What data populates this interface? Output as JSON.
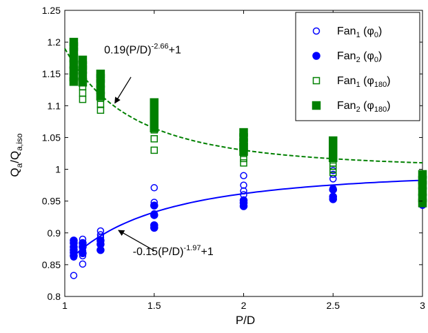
{
  "chart_data": {
    "type": "scatter",
    "xlabel": "P/D",
    "ylabel": {
      "main": "Q",
      "sub1": "a",
      "mid": "/Q",
      "sub2": "a,iso"
    },
    "xlim": [
      1,
      3
    ],
    "ylim": [
      0.8,
      1.25
    ],
    "xticks": [
      {
        "v": 1,
        "label": "1"
      },
      {
        "v": 1.5,
        "label": "1.5"
      },
      {
        "v": 2,
        "label": "2"
      },
      {
        "v": 2.5,
        "label": "2.5"
      },
      {
        "v": 3,
        "label": "3"
      }
    ],
    "yticks": [
      {
        "v": 0.8,
        "label": "0.8"
      },
      {
        "v": 0.85,
        "label": "0.85"
      },
      {
        "v": 0.9,
        "label": "0.9"
      },
      {
        "v": 0.95,
        "label": "0.95"
      },
      {
        "v": 1.0,
        "label": "1"
      },
      {
        "v": 1.05,
        "label": "1.05"
      },
      {
        "v": 1.1,
        "label": "1.1"
      },
      {
        "v": 1.15,
        "label": "1.15"
      },
      {
        "v": 1.2,
        "label": "1.2"
      },
      {
        "v": 1.25,
        "label": "1.25"
      }
    ],
    "grid": false,
    "legend_position": "top-right",
    "colors": {
      "blue": "#0000ff",
      "green": "#008000",
      "blue_line": "#1a1aff"
    },
    "series": [
      {
        "name": "Fan1 (φ0)",
        "legend": {
          "base": "Fan",
          "sub": "1",
          "mid": " (φ",
          "phisub": "0",
          "end": ")"
        },
        "marker": "circle-open",
        "color": "#0000ff",
        "points": [
          [
            1.05,
            0.833
          ],
          [
            1.05,
            0.862
          ],
          [
            1.05,
            0.868
          ],
          [
            1.05,
            0.875
          ],
          [
            1.05,
            0.882
          ],
          [
            1.05,
            0.887
          ],
          [
            1.1,
            0.851
          ],
          [
            1.1,
            0.864
          ],
          [
            1.1,
            0.872
          ],
          [
            1.1,
            0.881
          ],
          [
            1.1,
            0.89
          ],
          [
            1.2,
            0.885
          ],
          [
            1.2,
            0.893
          ],
          [
            1.2,
            0.897
          ],
          [
            1.2,
            0.903
          ],
          [
            1.5,
            0.912
          ],
          [
            1.5,
            0.93
          ],
          [
            1.5,
            0.943
          ],
          [
            1.5,
            0.948
          ],
          [
            1.5,
            0.971
          ],
          [
            2.0,
            0.946
          ],
          [
            2.0,
            0.952
          ],
          [
            2.0,
            0.96
          ],
          [
            2.0,
            0.966
          ],
          [
            2.0,
            0.975
          ],
          [
            2.0,
            0.99
          ],
          [
            2.5,
            0.97
          ],
          [
            2.5,
            0.985
          ],
          [
            2.5,
            0.992
          ],
          [
            2.5,
            0.998
          ],
          [
            3.0,
            0.955
          ],
          [
            3.0,
            0.965
          ],
          [
            3.0,
            0.975
          ],
          [
            3.0,
            0.982
          ],
          [
            3.0,
            0.988
          ]
        ]
      },
      {
        "name": "Fan2 (φ0)",
        "legend": {
          "base": "Fan",
          "sub": "2",
          "mid": " (φ",
          "phisub": "0",
          "end": ")"
        },
        "marker": "circle-filled",
        "color": "#0000ff",
        "points": [
          [
            1.05,
            0.864
          ],
          [
            1.05,
            0.869
          ],
          [
            1.05,
            0.873
          ],
          [
            1.05,
            0.878
          ],
          [
            1.05,
            0.884
          ],
          [
            1.05,
            0.888
          ],
          [
            1.1,
            0.868
          ],
          [
            1.1,
            0.878
          ],
          [
            1.1,
            0.884
          ],
          [
            1.2,
            0.873
          ],
          [
            1.2,
            0.882
          ],
          [
            1.2,
            0.888
          ],
          [
            1.5,
            0.908
          ],
          [
            1.5,
            0.912
          ],
          [
            1.5,
            0.928
          ],
          [
            1.5,
            0.943
          ],
          [
            2.0,
            0.942
          ],
          [
            2.0,
            0.947
          ],
          [
            2.0,
            0.951
          ],
          [
            2.5,
            0.953
          ],
          [
            2.5,
            0.957
          ],
          [
            2.5,
            0.968
          ],
          [
            3.0,
            0.944
          ],
          [
            3.0,
            0.95
          ],
          [
            3.0,
            0.958
          ],
          [
            3.0,
            0.963
          ]
        ]
      },
      {
        "name": "Fan1 (φ180)",
        "legend": {
          "base": "Fan",
          "sub": "1",
          "mid": " (φ",
          "phisub": "180",
          "end": ")"
        },
        "marker": "square-open",
        "color": "#008000",
        "points": [
          [
            1.05,
            1.15
          ],
          [
            1.05,
            1.162
          ],
          [
            1.05,
            1.173
          ],
          [
            1.1,
            1.11
          ],
          [
            1.1,
            1.12
          ],
          [
            1.1,
            1.13
          ],
          [
            1.1,
            1.148
          ],
          [
            1.1,
            1.16
          ],
          [
            1.2,
            1.093
          ],
          [
            1.2,
            1.102
          ],
          [
            1.2,
            1.112
          ],
          [
            1.2,
            1.12
          ],
          [
            1.2,
            1.13
          ],
          [
            1.5,
            1.03
          ],
          [
            1.5,
            1.048
          ],
          [
            1.5,
            1.062
          ],
          [
            1.5,
            1.07
          ],
          [
            1.5,
            1.083
          ],
          [
            2.0,
            1.01
          ],
          [
            2.0,
            1.017
          ],
          [
            2.0,
            1.025
          ],
          [
            2.0,
            1.032
          ],
          [
            2.0,
            1.045
          ],
          [
            2.5,
            0.995
          ],
          [
            2.5,
            1.0
          ],
          [
            2.5,
            1.005
          ],
          [
            2.5,
            1.01
          ],
          [
            3.0,
            0.96
          ],
          [
            3.0,
            0.97
          ],
          [
            3.0,
            0.978
          ],
          [
            3.0,
            0.985
          ],
          [
            3.0,
            0.99
          ]
        ]
      },
      {
        "name": "Fan2 (φ180)",
        "legend": {
          "base": "Fan",
          "sub": "2",
          "mid": " (φ",
          "phisub": "180",
          "end": ")"
        },
        "marker": "square-filled",
        "color": "#008000",
        "points": [
          [
            1.05,
            1.138
          ],
          [
            1.05,
            1.145
          ],
          [
            1.05,
            1.155
          ],
          [
            1.05,
            1.165
          ],
          [
            1.05,
            1.175
          ],
          [
            1.05,
            1.185
          ],
          [
            1.05,
            1.193
          ],
          [
            1.05,
            1.2
          ],
          [
            1.1,
            1.137
          ],
          [
            1.1,
            1.147
          ],
          [
            1.1,
            1.157
          ],
          [
            1.1,
            1.163
          ],
          [
            1.1,
            1.172
          ],
          [
            1.2,
            1.115
          ],
          [
            1.2,
            1.125
          ],
          [
            1.2,
            1.135
          ],
          [
            1.2,
            1.143
          ],
          [
            1.2,
            1.15
          ],
          [
            1.5,
            1.065
          ],
          [
            1.5,
            1.075
          ],
          [
            1.5,
            1.087
          ],
          [
            1.5,
            1.095
          ],
          [
            1.5,
            1.105
          ],
          [
            2.0,
            1.028
          ],
          [
            2.0,
            1.035
          ],
          [
            2.0,
            1.042
          ],
          [
            2.0,
            1.05
          ],
          [
            2.0,
            1.058
          ],
          [
            2.5,
            1.018
          ],
          [
            2.5,
            1.025
          ],
          [
            2.5,
            1.032
          ],
          [
            2.5,
            1.038
          ],
          [
            2.5,
            1.045
          ],
          [
            3.0,
            0.947
          ],
          [
            3.0,
            0.955
          ],
          [
            3.0,
            0.965
          ],
          [
            3.0,
            0.975
          ],
          [
            3.0,
            0.983
          ],
          [
            3.0,
            0.992
          ]
        ]
      }
    ],
    "fits": [
      {
        "name": "fit-upper",
        "color": "#008000",
        "dash": true,
        "a": 0.19,
        "b": -2.66,
        "c": 1,
        "x_range": [
          1,
          3
        ]
      },
      {
        "name": "fit-lower",
        "color": "#0000ff",
        "dash": false,
        "a": -0.15,
        "b": -1.97,
        "c": 1,
        "x_range": [
          1.05,
          3
        ]
      }
    ],
    "annotations": [
      {
        "name": "annotation-upper-fit",
        "pre": "0.19(P/D)",
        "sup": "-2.66",
        "post": "+1",
        "text_at": [
          1.22,
          1.182
        ],
        "arrow_from": [
          1.37,
          1.145
        ],
        "arrow_to": [
          1.28,
          1.104
        ]
      },
      {
        "name": "annotation-lower-fit",
        "pre": "-0.15(P/D)",
        "sup": "-1.97",
        "post": "+1",
        "text_at": [
          1.38,
          0.865
        ],
        "arrow_from": [
          1.5,
          0.872
        ],
        "arrow_to": [
          1.3,
          0.904
        ]
      }
    ]
  }
}
